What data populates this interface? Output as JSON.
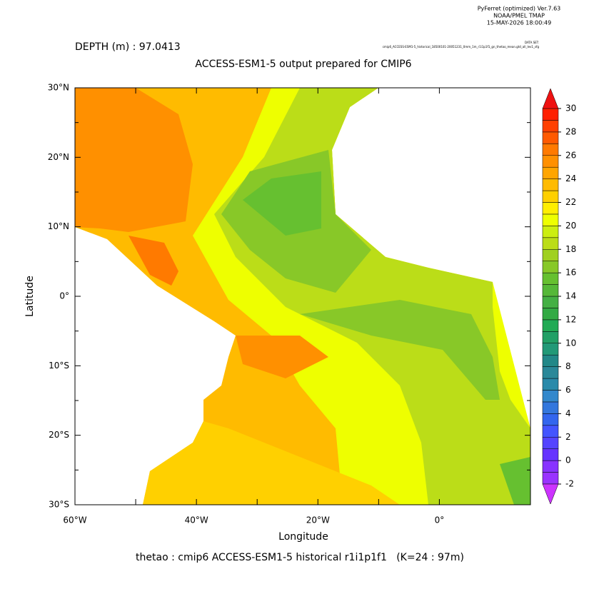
{
  "chart_data": {
    "type": "filled-contour",
    "header": [
      "PyFerret (optimized) Ver.7.63",
      "NOAA/PMEL TMAP",
      "15-MAY-2026 18:00:49"
    ],
    "depth_label": "DEPTH (m) : 97.0413",
    "dataset_label": "DATA SET:",
    "dataset_name": "cmip6_ACCESS-ESM1-5_historical_18500101-20051231_0mm_1m_r1i1p1f1_gn_thetao_mean.gtd_all_lev1_sfg",
    "title": "ACCESS-ESM1-5 output prepared for CMIP6",
    "xlabel": "Longitude",
    "ylabel": "Latitude",
    "footer": "thetao : cmip6 ACCESS-ESM1-5 historical r1i1p1f1   (K=24 : 97m)",
    "xlim": [
      -60,
      15
    ],
    "ylim": [
      -30,
      30
    ],
    "xticks": [
      {
        "value": -60,
        "label": "60°W"
      },
      {
        "value": -40,
        "label": "40°W"
      },
      {
        "value": -20,
        "label": "20°W"
      },
      {
        "value": 0,
        "label": "0°"
      }
    ],
    "yticks": [
      {
        "value": -30,
        "label": "30°S"
      },
      {
        "value": -20,
        "label": "20°S"
      },
      {
        "value": -10,
        "label": "10°S"
      },
      {
        "value": 0,
        "label": "0°"
      },
      {
        "value": 10,
        "label": "10°N"
      },
      {
        "value": 20,
        "label": "20°N"
      },
      {
        "value": 30,
        "label": "30°N"
      }
    ],
    "colorbar": {
      "levels": [
        -2,
        0,
        2,
        4,
        6,
        8,
        10,
        12,
        14,
        16,
        18,
        20,
        22,
        24,
        26,
        28,
        30
      ],
      "colors": [
        "#9933ff",
        "#8833ff",
        "#6633ff",
        "#5544ff",
        "#4455ff",
        "#3366ee",
        "#3377dd",
        "#3388cc",
        "#2a8aaa",
        "#2a8899",
        "#228888",
        "#229977",
        "#22a066",
        "#22aa55",
        "#33aa44",
        "#44b044",
        "#55b838",
        "#66c030",
        "#88c828",
        "#a0d020",
        "#bbdd18",
        "#ccee10",
        "#eeff00",
        "#ffee00",
        "#ffd000",
        "#ffbb00",
        "#ffa500",
        "#ff9000",
        "#ff7a00",
        "#ff5a00",
        "#ff4000",
        "#ff2000"
      ],
      "under_color": "#cc33ff",
      "over_color": "#ee1111"
    }
  }
}
